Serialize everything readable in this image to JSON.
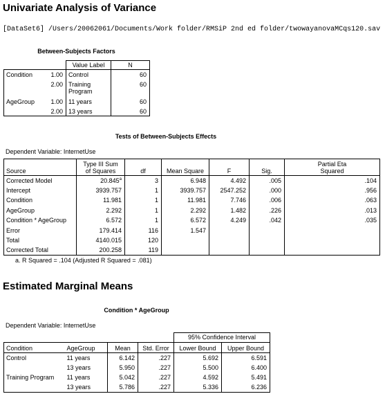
{
  "page": {
    "title": "Univariate Analysis of Variance",
    "dataset_path": "[DataSet6] /Users/20062061/Documents/Work folder/RMSiP 2nd ed folder/twowayanovaMCqs120.sav"
  },
  "factors_table": {
    "caption": "Between-Subjects Factors",
    "header": {
      "value_label": "Value Label",
      "n": "N"
    },
    "rows": [
      {
        "factor": "Condition",
        "value": "1.00",
        "value_label": "Control",
        "n": "60"
      },
      {
        "factor": "",
        "value": "2.00",
        "value_label": "Training Program",
        "n": "60"
      },
      {
        "factor": "AgeGroup",
        "value": "1.00",
        "value_label": "11 years",
        "n": "60"
      },
      {
        "factor": "",
        "value": "2.00",
        "value_label": "13 years",
        "n": "60"
      }
    ]
  },
  "effects_table": {
    "caption": "Tests of Between-Subjects Effects",
    "dependent_variable": "Dependent Variable: InternetUse",
    "columns": [
      "Source",
      "Type III Sum of Squares",
      "df",
      "Mean Square",
      "F",
      "Sig.",
      "Partial Eta Squared"
    ],
    "rows": [
      {
        "source": "Corrected Model",
        "ss": "20.845",
        "ss_note": "a",
        "df": "3",
        "ms": "6.948",
        "f": "4.492",
        "sig": ".005",
        "eta": ".104"
      },
      {
        "source": "Intercept",
        "ss": "3939.757",
        "df": "1",
        "ms": "3939.757",
        "f": "2547.252",
        "sig": ".000",
        "eta": ".956"
      },
      {
        "source": "Condition",
        "ss": "11.981",
        "df": "1",
        "ms": "11.981",
        "f": "7.746",
        "sig": ".006",
        "eta": ".063"
      },
      {
        "source": "AgeGroup",
        "ss": "2.292",
        "df": "1",
        "ms": "2.292",
        "f": "1.482",
        "sig": ".226",
        "eta": ".013"
      },
      {
        "source": "Condition * AgeGroup",
        "ss": "6.572",
        "df": "1",
        "ms": "6.572",
        "f": "4.249",
        "sig": ".042",
        "eta": ".035"
      },
      {
        "source": "Error",
        "ss": "179.414",
        "df": "116",
        "ms": "1.547",
        "f": "",
        "sig": "",
        "eta": ""
      },
      {
        "source": "Total",
        "ss": "4140.015",
        "df": "120",
        "ms": "",
        "f": "",
        "sig": "",
        "eta": ""
      },
      {
        "source": "Corrected Total",
        "ss": "200.258",
        "df": "119",
        "ms": "",
        "f": "",
        "sig": "",
        "eta": ""
      }
    ],
    "footnote": "a. R Squared = .104 (Adjusted R Squared = .081)"
  },
  "emm": {
    "section_title": "Estimated Marginal Means",
    "caption": "Condition * AgeGroup",
    "dependent_variable": "Dependent Variable: InternetUse",
    "ci_header": "95% Confidence Interval",
    "columns": [
      "Condition",
      "AgeGroup",
      "Mean",
      "Std. Error",
      "Lower Bound",
      "Upper Bound"
    ],
    "rows": [
      {
        "condition": "Control",
        "age": "11 years",
        "mean": "6.142",
        "se": ".227",
        "lower": "5.692",
        "upper": "6.591"
      },
      {
        "condition": "",
        "age": "13 years",
        "mean": "5.950",
        "se": ".227",
        "lower": "5.500",
        "upper": "6.400"
      },
      {
        "condition": "Training Program",
        "age": "11 years",
        "mean": "5.042",
        "se": ".227",
        "lower": "4.592",
        "upper": "5.491"
      },
      {
        "condition": "",
        "age": "13 years",
        "mean": "5.786",
        "se": ".227",
        "lower": "5.336",
        "upper": "6.236"
      }
    ]
  }
}
